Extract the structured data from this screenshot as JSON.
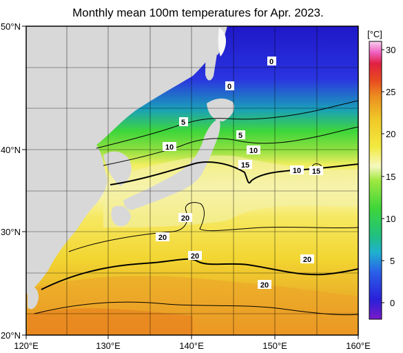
{
  "title": "Monthly mean 100m temperatures for Apr. 2023.",
  "map": {
    "lon_range": [
      120,
      160
    ],
    "lat_range": [
      20,
      50
    ],
    "x_ticks": [
      "120°E",
      "130°E",
      "140°E",
      "150°E",
      "160°E"
    ],
    "y_ticks": [
      "50°N",
      "40°N",
      "30°N",
      "20°N"
    ],
    "grid": true
  },
  "colorbar": {
    "unit": "[°C]",
    "ticks": [
      "30",
      "25",
      "20",
      "15",
      "10",
      "5",
      "0"
    ]
  },
  "contour_labels": [
    "0",
    "0",
    "5",
    "5",
    "10",
    "10",
    "10",
    "15",
    "15",
    "20",
    "20",
    "20",
    "20",
    "20"
  ],
  "colors": {
    "land": "#d8d8d8",
    "no_data": "#5f5f5f",
    "cold": "#2a1fd0",
    "mid": "#3ed63a",
    "warm": "#f0dc28",
    "hot": "#e89020"
  }
}
